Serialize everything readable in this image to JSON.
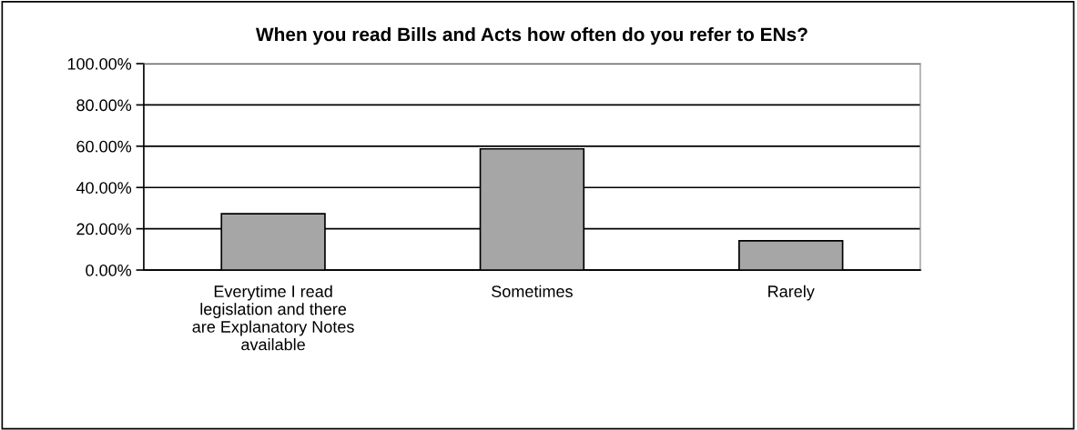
{
  "chart_data": {
    "type": "bar",
    "title": "When you read Bills and Acts how often do you refer to ENs?",
    "categories": [
      "Everytime I read\nlegislation and there\nare Explanatory Notes\navailable",
      "Sometimes",
      "Rarely"
    ],
    "values": [
      27.3,
      58.7,
      14.2
    ],
    "color": "#a6a6a6",
    "ylim": [
      0,
      100
    ],
    "yticks": [
      {
        "value": 0,
        "label": "0.00%"
      },
      {
        "value": 20,
        "label": "20.00%"
      },
      {
        "value": 40,
        "label": "40.00%"
      },
      {
        "value": 60,
        "label": "60.00%"
      },
      {
        "value": 80,
        "label": "80.00%"
      },
      {
        "value": 100,
        "label": "100.00%"
      }
    ],
    "grid": "y"
  }
}
